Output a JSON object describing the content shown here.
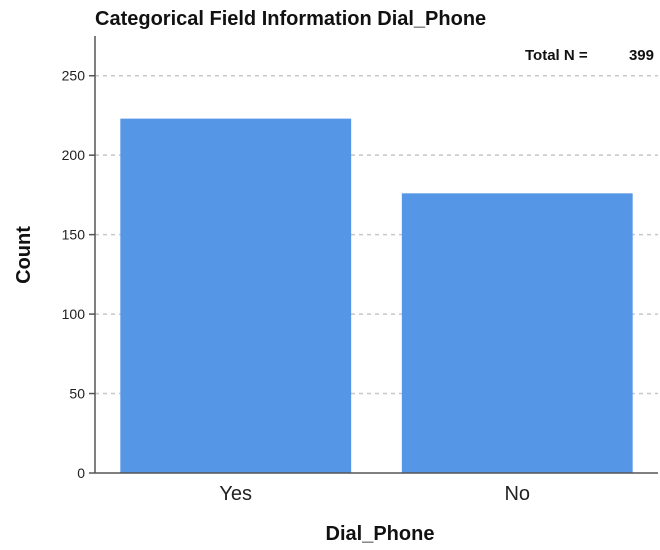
{
  "chart_data": {
    "type": "bar",
    "title": "Categorical Field Information Dial_Phone",
    "xlabel": "Dial_Phone",
    "ylabel": "Count",
    "categories": [
      "Yes",
      "No"
    ],
    "values": [
      223,
      176
    ],
    "ylim": [
      0,
      275
    ],
    "yticks": [
      0,
      50,
      100,
      150,
      200,
      250
    ],
    "grid": true,
    "bar_color": "#5596E6",
    "total_label": "Total N =",
    "total_value": "399"
  }
}
